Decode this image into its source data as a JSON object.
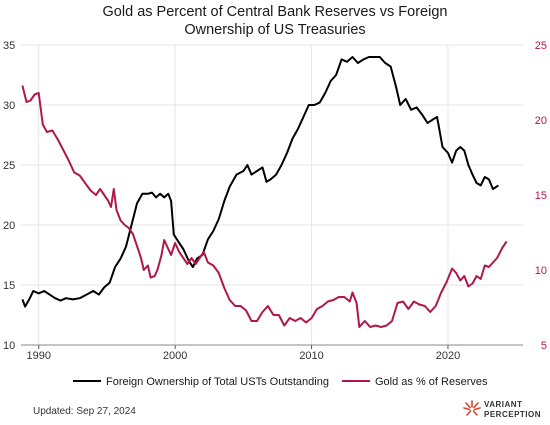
{
  "chart_data": {
    "type": "line",
    "title": "Gold as Percent of Central Bank Reserves vs Foreign Ownership of US Treasuries",
    "title_lines": [
      "Gold as Percent of Central Bank Reserves vs Foreign",
      "Ownership of US Treasuries"
    ],
    "x_ticks": [
      "1990",
      "2000",
      "2010",
      "2020"
    ],
    "xlim": [
      1988.7,
      2025.5
    ],
    "left_axis": {
      "ylim": [
        10,
        35
      ],
      "ticks": [
        "10",
        "15",
        "20",
        "25",
        "30",
        "35"
      ]
    },
    "right_axis": {
      "ylim": [
        5,
        25
      ],
      "ticks": [
        "5",
        "10",
        "15",
        "20",
        "25"
      ],
      "color": "#b0174b"
    },
    "grid": true,
    "legend_position": "bottom",
    "series": [
      {
        "name": "Foreign Ownership of Total USTs Outstanding",
        "axis": "left",
        "color": "#000000",
        "points": [
          [
            1988.8,
            13.8
          ],
          [
            1989.0,
            13.2
          ],
          [
            1989.3,
            13.8
          ],
          [
            1989.6,
            14.5
          ],
          [
            1990.0,
            14.3
          ],
          [
            1990.4,
            14.5
          ],
          [
            1990.8,
            14.2
          ],
          [
            1991.2,
            13.9
          ],
          [
            1991.6,
            13.7
          ],
          [
            1992.0,
            13.9
          ],
          [
            1992.5,
            13.8
          ],
          [
            1993.0,
            13.9
          ],
          [
            1993.5,
            14.2
          ],
          [
            1994.0,
            14.5
          ],
          [
            1994.4,
            14.2
          ],
          [
            1994.8,
            14.8
          ],
          [
            1995.2,
            15.2
          ],
          [
            1995.6,
            16.5
          ],
          [
            1996.0,
            17.2
          ],
          [
            1996.4,
            18.2
          ],
          [
            1996.8,
            20.0
          ],
          [
            1997.2,
            21.8
          ],
          [
            1997.6,
            22.6
          ],
          [
            1998.0,
            22.6
          ],
          [
            1998.3,
            22.7
          ],
          [
            1998.6,
            22.3
          ],
          [
            1998.9,
            22.6
          ],
          [
            1999.2,
            22.3
          ],
          [
            1999.5,
            22.6
          ],
          [
            1999.7,
            22.0
          ],
          [
            1999.9,
            19.2
          ],
          [
            2000.3,
            18.5
          ],
          [
            2000.6,
            18.0
          ],
          [
            2001.0,
            17.0
          ],
          [
            2001.3,
            16.5
          ],
          [
            2001.6,
            17.2
          ],
          [
            2002.0,
            17.5
          ],
          [
            2002.4,
            18.8
          ],
          [
            2002.8,
            19.5
          ],
          [
            2003.2,
            20.5
          ],
          [
            2003.6,
            22.0
          ],
          [
            2004.0,
            23.2
          ],
          [
            2004.5,
            24.2
          ],
          [
            2005.0,
            24.5
          ],
          [
            2005.3,
            25.0
          ],
          [
            2005.6,
            24.2
          ],
          [
            2006.0,
            24.5
          ],
          [
            2006.4,
            24.8
          ],
          [
            2006.7,
            23.6
          ],
          [
            2007.0,
            23.8
          ],
          [
            2007.4,
            24.2
          ],
          [
            2007.8,
            25.0
          ],
          [
            2008.2,
            26.0
          ],
          [
            2008.6,
            27.2
          ],
          [
            2009.0,
            28.0
          ],
          [
            2009.4,
            29.0
          ],
          [
            2009.8,
            30.0
          ],
          [
            2010.2,
            30.0
          ],
          [
            2010.6,
            30.2
          ],
          [
            2011.0,
            31.0
          ],
          [
            2011.4,
            32.0
          ],
          [
            2011.8,
            32.5
          ],
          [
            2012.2,
            33.8
          ],
          [
            2012.6,
            33.6
          ],
          [
            2013.0,
            34.0
          ],
          [
            2013.4,
            33.5
          ],
          [
            2013.8,
            33.8
          ],
          [
            2014.2,
            34.0
          ],
          [
            2014.6,
            34.0
          ],
          [
            2015.0,
            34.0
          ],
          [
            2015.4,
            33.5
          ],
          [
            2015.8,
            33.2
          ],
          [
            2016.2,
            31.5
          ],
          [
            2016.5,
            30.0
          ],
          [
            2016.9,
            30.5
          ],
          [
            2017.3,
            29.6
          ],
          [
            2017.7,
            29.8
          ],
          [
            2018.1,
            29.2
          ],
          [
            2018.5,
            28.5
          ],
          [
            2018.9,
            28.8
          ],
          [
            2019.2,
            29.0
          ],
          [
            2019.6,
            26.5
          ],
          [
            2020.0,
            26.0
          ],
          [
            2020.3,
            25.2
          ],
          [
            2020.6,
            26.2
          ],
          [
            2020.9,
            26.5
          ],
          [
            2021.2,
            26.2
          ],
          [
            2021.5,
            25.0
          ],
          [
            2021.8,
            24.2
          ],
          [
            2022.1,
            23.5
          ],
          [
            2022.4,
            23.3
          ],
          [
            2022.7,
            24.0
          ],
          [
            2023.0,
            23.8
          ],
          [
            2023.3,
            23.0
          ],
          [
            2023.7,
            23.3
          ]
        ]
      },
      {
        "name": "Gold as % of Reserves",
        "axis": "right",
        "color": "#b0174b",
        "points": [
          [
            1988.8,
            22.3
          ],
          [
            1989.1,
            21.2
          ],
          [
            1989.4,
            21.3
          ],
          [
            1989.7,
            21.7
          ],
          [
            1990.0,
            21.8
          ],
          [
            1990.3,
            19.7
          ],
          [
            1990.6,
            19.2
          ],
          [
            1991.0,
            19.3
          ],
          [
            1991.4,
            18.7
          ],
          [
            1991.8,
            18.0
          ],
          [
            1992.2,
            17.3
          ],
          [
            1992.6,
            16.5
          ],
          [
            1993.0,
            16.3
          ],
          [
            1993.4,
            15.8
          ],
          [
            1993.8,
            15.3
          ],
          [
            1994.2,
            15.0
          ],
          [
            1994.5,
            15.4
          ],
          [
            1994.8,
            15.0
          ],
          [
            1995.1,
            14.6
          ],
          [
            1995.3,
            14.2
          ],
          [
            1995.5,
            15.4
          ],
          [
            1995.7,
            14.0
          ],
          [
            1996.0,
            13.3
          ],
          [
            1996.3,
            13.0
          ],
          [
            1996.6,
            12.8
          ],
          [
            1996.9,
            12.4
          ],
          [
            1997.2,
            11.6
          ],
          [
            1997.5,
            10.8
          ],
          [
            1997.7,
            10.0
          ],
          [
            1998.0,
            10.3
          ],
          [
            1998.2,
            9.5
          ],
          [
            1998.5,
            9.6
          ],
          [
            1998.7,
            10.0
          ],
          [
            1999.0,
            11.0
          ],
          [
            1999.2,
            12.0
          ],
          [
            1999.5,
            11.4
          ],
          [
            1999.7,
            11.0
          ],
          [
            2000.0,
            11.8
          ],
          [
            2000.3,
            11.2
          ],
          [
            2000.6,
            10.8
          ],
          [
            2000.9,
            10.4
          ],
          [
            2001.2,
            10.8
          ],
          [
            2001.5,
            10.4
          ],
          [
            2001.8,
            10.8
          ],
          [
            2002.1,
            11.2
          ],
          [
            2002.4,
            10.5
          ],
          [
            2002.8,
            10.3
          ],
          [
            2003.2,
            9.8
          ],
          [
            2003.6,
            8.8
          ],
          [
            2004.0,
            8.0
          ],
          [
            2004.4,
            7.6
          ],
          [
            2004.8,
            7.6
          ],
          [
            2005.2,
            7.3
          ],
          [
            2005.6,
            6.6
          ],
          [
            2006.0,
            6.6
          ],
          [
            2006.4,
            7.2
          ],
          [
            2006.8,
            7.6
          ],
          [
            2007.2,
            7.0
          ],
          [
            2007.6,
            7.0
          ],
          [
            2008.0,
            6.3
          ],
          [
            2008.4,
            6.8
          ],
          [
            2008.8,
            6.6
          ],
          [
            2009.2,
            6.8
          ],
          [
            2009.6,
            6.5
          ],
          [
            2010.0,
            6.8
          ],
          [
            2010.4,
            7.4
          ],
          [
            2010.8,
            7.6
          ],
          [
            2011.2,
            7.9
          ],
          [
            2011.6,
            8.0
          ],
          [
            2012.0,
            8.2
          ],
          [
            2012.4,
            8.2
          ],
          [
            2012.8,
            7.9
          ],
          [
            2013.0,
            8.5
          ],
          [
            2013.3,
            7.8
          ],
          [
            2013.5,
            6.2
          ],
          [
            2013.9,
            6.6
          ],
          [
            2014.3,
            6.2
          ],
          [
            2014.7,
            6.3
          ],
          [
            2015.1,
            6.2
          ],
          [
            2015.5,
            6.3
          ],
          [
            2015.9,
            6.6
          ],
          [
            2016.3,
            7.8
          ],
          [
            2016.7,
            7.9
          ],
          [
            2017.1,
            7.4
          ],
          [
            2017.5,
            7.9
          ],
          [
            2017.9,
            7.7
          ],
          [
            2018.3,
            7.6
          ],
          [
            2018.7,
            7.2
          ],
          [
            2019.1,
            7.6
          ],
          [
            2019.5,
            8.5
          ],
          [
            2019.9,
            9.2
          ],
          [
            2020.3,
            10.1
          ],
          [
            2020.6,
            9.8
          ],
          [
            2020.9,
            9.3
          ],
          [
            2021.2,
            9.6
          ],
          [
            2021.5,
            8.9
          ],
          [
            2021.8,
            9.1
          ],
          [
            2022.1,
            9.6
          ],
          [
            2022.4,
            9.4
          ],
          [
            2022.7,
            10.3
          ],
          [
            2023.0,
            10.2
          ],
          [
            2023.3,
            10.5
          ],
          [
            2023.6,
            10.8
          ],
          [
            2024.0,
            11.5
          ],
          [
            2024.3,
            11.9
          ]
        ]
      }
    ]
  },
  "footer": {
    "updated": "Updated: Sep 27, 2024",
    "brand_line1": "VARIANT",
    "brand_line2": "PERCEPTION",
    "brand_icon": "sunburst-logo-icon",
    "brand_color": "#d9472b"
  }
}
